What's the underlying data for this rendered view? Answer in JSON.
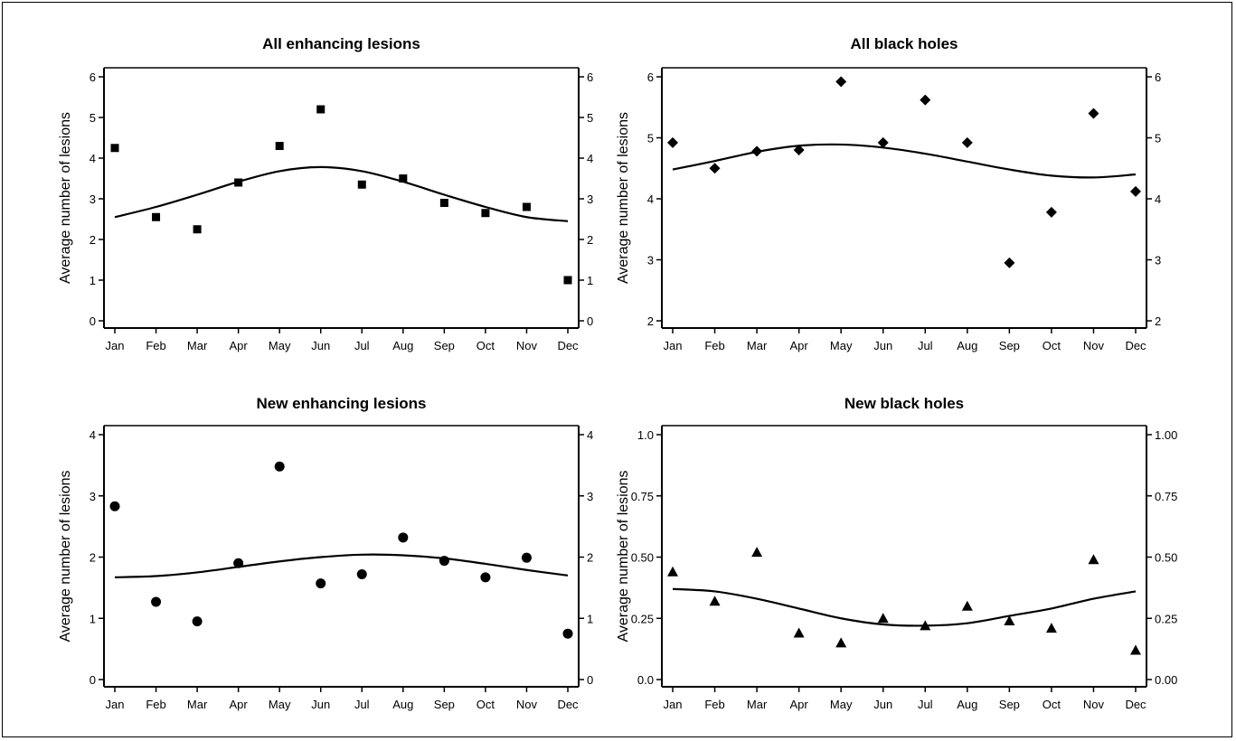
{
  "chart_data": [
    {
      "type": "scatter",
      "title": "All enhancing lesions",
      "ylabel": "Average number of lesions",
      "xlabel": "",
      "categories": [
        "Jan",
        "Feb",
        "Mar",
        "Apr",
        "May",
        "Jun",
        "Jul",
        "Aug",
        "Sep",
        "Oct",
        "Nov",
        "Dec"
      ],
      "ylim": [
        0,
        6
      ],
      "yticks": [
        "0",
        "1",
        "2",
        "3",
        "4",
        "5",
        "6"
      ],
      "marker": "square",
      "observed": [
        4.25,
        2.55,
        2.25,
        3.4,
        4.3,
        5.2,
        3.35,
        3.5,
        2.9,
        2.65,
        2.8,
        1.0
      ],
      "fitted": [
        2.55,
        2.8,
        3.1,
        3.42,
        3.68,
        3.78,
        3.68,
        3.42,
        3.1,
        2.8,
        2.55,
        2.45
      ],
      "grid": false,
      "right_axis": true
    },
    {
      "type": "scatter",
      "title": "All black holes",
      "ylabel": "Average number of lesions",
      "xlabel": "",
      "categories": [
        "Jan",
        "Feb",
        "Mar",
        "Apr",
        "May",
        "Jun",
        "Jul",
        "Aug",
        "Sep",
        "Oct",
        "Nov",
        "Dec"
      ],
      "ylim": [
        2,
        6
      ],
      "yticks": [
        "2",
        "3",
        "4",
        "5",
        "6"
      ],
      "marker": "diamond",
      "observed": [
        4.92,
        4.5,
        4.78,
        4.8,
        5.92,
        4.92,
        5.62,
        4.92,
        2.95,
        3.78,
        5.4,
        4.12
      ],
      "fitted": [
        4.48,
        4.62,
        4.77,
        4.87,
        4.89,
        4.84,
        4.74,
        4.61,
        4.48,
        4.38,
        4.35,
        4.4
      ],
      "grid": false,
      "right_axis": true
    },
    {
      "type": "scatter",
      "title": "New enhancing lesions",
      "ylabel": "Average number of lesions",
      "xlabel": "",
      "categories": [
        "Jan",
        "Feb",
        "Mar",
        "Apr",
        "May",
        "Jun",
        "Jul",
        "Aug",
        "Sep",
        "Oct",
        "Nov",
        "Dec"
      ],
      "ylim": [
        0,
        4
      ],
      "yticks": [
        "0",
        "1",
        "2",
        "3",
        "4"
      ],
      "marker": "circle",
      "observed": [
        2.83,
        1.27,
        0.95,
        1.9,
        3.48,
        1.57,
        1.72,
        2.32,
        1.94,
        1.67,
        1.99,
        0.75
      ],
      "fitted": [
        1.67,
        1.69,
        1.75,
        1.84,
        1.93,
        2.0,
        2.04,
        2.03,
        1.98,
        1.89,
        1.79,
        1.7
      ],
      "grid": false,
      "right_axis": true
    },
    {
      "type": "scatter",
      "title": "New black holes",
      "ylabel": "Average number of lesions",
      "xlabel": "",
      "categories": [
        "Jan",
        "Feb",
        "Mar",
        "Apr",
        "May",
        "Jun",
        "Jul",
        "Aug",
        "Sep",
        "Oct",
        "Nov",
        "Dec"
      ],
      "ylim": [
        0,
        1
      ],
      "yticks": [
        "0.0",
        "0.25",
        "0.50",
        "0.75",
        "1.0"
      ],
      "yticks_right": [
        "0.00",
        "0.25",
        "0.50",
        "0.75",
        "1.00"
      ],
      "marker": "triangle",
      "observed": [
        0.44,
        0.32,
        0.52,
        0.19,
        0.15,
        0.25,
        0.22,
        0.3,
        0.24,
        0.21,
        0.49,
        0.12
      ],
      "fitted": [
        0.37,
        0.36,
        0.33,
        0.29,
        0.25,
        0.225,
        0.22,
        0.23,
        0.26,
        0.29,
        0.33,
        0.36
      ],
      "grid": false,
      "right_axis": true
    }
  ]
}
